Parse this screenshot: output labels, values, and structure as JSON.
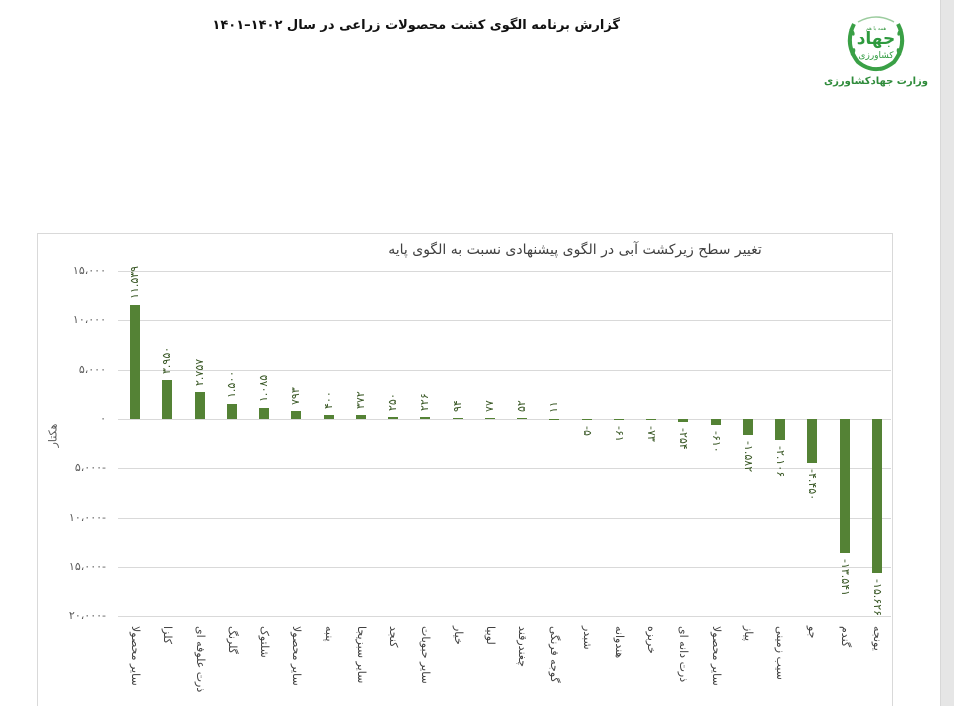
{
  "header": {
    "report_title": "گزارش برنامه الگوی کشت محصولات زراعی در سال ۱۴۰۲–۱۴۰۱",
    "logo": {
      "top_text": "همه با هم",
      "main_text": "جهاد",
      "sub_text": "کشاورزی",
      "caption": "وزارت جهادکشاورزی",
      "icon": "wheat-wreath-logo-icon"
    }
  },
  "colors": {
    "bar": "#548235",
    "gridline": "#d9d9d9",
    "logo_green": "#2e8b3a"
  },
  "chart_data": {
    "type": "bar",
    "title": "تغییر سطح زیرکشت آبی در الگوی پیشنهادی نسبت به الگوی پایه",
    "xlabel": "",
    "ylabel": "هکتار",
    "ylim": [
      -20000,
      15000
    ],
    "yticks": [
      15000,
      10000,
      5000,
      0,
      -5000,
      -10000,
      -15000,
      -20000
    ],
    "ytick_labels": [
      "۱۵،۰۰۰",
      "۱۰،۰۰۰",
      "۵،۰۰۰",
      "۰",
      "-۵،۰۰۰",
      "-۱۰،۰۰۰",
      "-۱۵،۰۰۰",
      "-۲۰،۰۰۰"
    ],
    "grid": true,
    "legend": null,
    "categories": [
      "سایر محصولات",
      "کلزا",
      "ذرت علوفه ای",
      "گلرنگ",
      "شلتوک",
      "سایر محصولات",
      "پنبه",
      "سایر سبزیجات",
      "کنجد",
      "سایر حبوبات",
      "خیار",
      "لوبیا",
      "چغندرقند",
      "گوجه فرنگی",
      "شبدر",
      "هندوانه",
      "خربزه",
      "ذرت دانه ای",
      "سایر محصولات",
      "پیاز",
      "سیب زمینی",
      "جو",
      "گندم",
      "یونجه"
    ],
    "category_labels_display": [
      "سایر محصولا",
      "کلزا",
      "ذرت علوفه ای",
      "گلرنگ",
      "شلتوک",
      "سایر محصولا",
      "پنبه",
      "سایر سبزیجا",
      "کنجد",
      "سایر حبوبات",
      "خیار",
      "لوبیا",
      "چغندرقند",
      "گوجه فرنگی",
      "شبدر",
      "هندوانه",
      "خربزه",
      "ذرت دانه ای",
      "سایر محصولا",
      "پیاز",
      "سیب زمینی",
      "جو",
      "گندم",
      "یونجه"
    ],
    "values": [
      11539,
      3950,
      2757,
      1500,
      1085,
      793,
      400,
      372,
      250,
      226,
      94,
      77,
      52,
      11,
      -5,
      -61,
      -73,
      -254,
      -610,
      -1582,
      -2106,
      -4450,
      -13541,
      -15626
    ],
    "value_labels": [
      "۱۱.۵۳۹",
      "۳.۹۵۰",
      "۲.۷۵۷",
      "۱.۵۰۰",
      "۱.۰۸۵",
      "۷۹۳",
      "۴۰۰",
      "۳۷۲",
      "۲۵۰",
      "۲۲۶",
      "۹۴",
      "۷۷",
      "۵۲",
      "۱۱",
      "-۵",
      "-۶۱",
      "-۷۳",
      "-۲۵۴",
      "-۶۱۰",
      "-۱.۵۸۲",
      "-۲.۱۰۶",
      "-۴.۴۵۰",
      "-۱۳.۵۴۱",
      "-۱۵.۶۲۶"
    ]
  }
}
